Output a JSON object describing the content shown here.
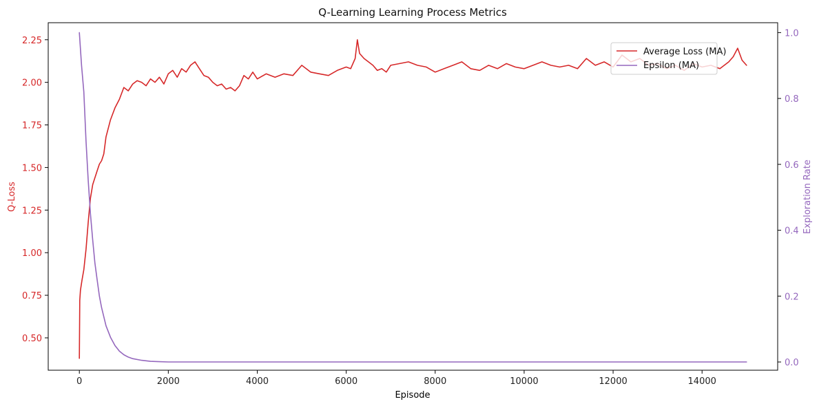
{
  "chart_data": {
    "type": "line",
    "title": "Q-Learning Learning Process Metrics",
    "xlabel": "Episode",
    "ylabel_left": "Q-Loss",
    "ylabel_right": "Exploration Rate",
    "xlim": [
      -700,
      15700
    ],
    "ylim_left": [
      0.31,
      2.35
    ],
    "ylim_right": [
      -0.025,
      1.03
    ],
    "xticks": [
      0,
      2000,
      4000,
      6000,
      8000,
      10000,
      12000,
      14000
    ],
    "xtick_labels": [
      "0",
      "2000",
      "4000",
      "6000",
      "8000",
      "10000",
      "12000",
      "14000"
    ],
    "yticks_left": [
      0.5,
      0.75,
      1.0,
      1.25,
      1.5,
      1.75,
      2.0,
      2.25
    ],
    "ytick_labels_left": [
      "0.50",
      "0.75",
      "1.00",
      "1.25",
      "1.50",
      "1.75",
      "2.00",
      "2.25"
    ],
    "yticks_right": [
      0.0,
      0.2,
      0.4,
      0.6,
      0.8,
      1.0
    ],
    "ytick_labels_right": [
      "0.0",
      "0.2",
      "0.4",
      "0.6",
      "0.8",
      "1.0"
    ],
    "grid": false,
    "legend_position": "top-right",
    "series": [
      {
        "name": "Average Loss (MA)",
        "axis": "left",
        "color": "#d62728",
        "x": [
          0,
          10,
          25,
          60,
          100,
          150,
          200,
          250,
          300,
          350,
          400,
          450,
          500,
          550,
          600,
          700,
          800,
          900,
          1000,
          1100,
          1200,
          1300,
          1400,
          1500,
          1600,
          1700,
          1800,
          1900,
          2000,
          2100,
          2200,
          2300,
          2400,
          2500,
          2600,
          2700,
          2800,
          2900,
          3000,
          3100,
          3200,
          3300,
          3400,
          3500,
          3600,
          3700,
          3800,
          3900,
          4000,
          4200,
          4400,
          4600,
          4800,
          5000,
          5200,
          5400,
          5600,
          5800,
          6000,
          6100,
          6200,
          6250,
          6300,
          6400,
          6500,
          6600,
          6700,
          6800,
          6900,
          7000,
          7200,
          7400,
          7600,
          7800,
          8000,
          8200,
          8400,
          8600,
          8800,
          9000,
          9200,
          9400,
          9600,
          9800,
          10000,
          10200,
          10400,
          10600,
          10800,
          11000,
          11200,
          11400,
          11600,
          11800,
          12000,
          12200,
          12400,
          12600,
          12800,
          13000,
          13200,
          13400,
          13600,
          13800,
          14000,
          14200,
          14400,
          14600,
          14700,
          14800,
          14900,
          15000
        ],
        "y": [
          0.38,
          0.72,
          0.78,
          0.84,
          0.9,
          1.02,
          1.18,
          1.32,
          1.4,
          1.44,
          1.48,
          1.52,
          1.54,
          1.58,
          1.68,
          1.78,
          1.85,
          1.9,
          1.97,
          1.95,
          1.99,
          2.01,
          2.0,
          1.98,
          2.02,
          2.0,
          2.03,
          1.99,
          2.05,
          2.07,
          2.03,
          2.08,
          2.06,
          2.1,
          2.12,
          2.08,
          2.04,
          2.03,
          2.0,
          1.98,
          1.99,
          1.96,
          1.97,
          1.95,
          1.98,
          2.04,
          2.02,
          2.06,
          2.02,
          2.05,
          2.03,
          2.05,
          2.04,
          2.1,
          2.06,
          2.05,
          2.04,
          2.07,
          2.09,
          2.08,
          2.14,
          2.25,
          2.17,
          2.14,
          2.12,
          2.1,
          2.07,
          2.08,
          2.06,
          2.1,
          2.11,
          2.12,
          2.1,
          2.09,
          2.06,
          2.08,
          2.1,
          2.12,
          2.08,
          2.07,
          2.1,
          2.08,
          2.11,
          2.09,
          2.08,
          2.1,
          2.12,
          2.1,
          2.09,
          2.1,
          2.08,
          2.14,
          2.1,
          2.12,
          2.09,
          2.16,
          2.12,
          2.14,
          2.1,
          2.11,
          2.08,
          2.1,
          2.07,
          2.11,
          2.09,
          2.1,
          2.08,
          2.12,
          2.15,
          2.2,
          2.13,
          2.1
        ]
      },
      {
        "name": "Epsilon (MA)",
        "axis": "right",
        "color": "#9467bd",
        "x": [
          0,
          50,
          100,
          150,
          200,
          250,
          300,
          350,
          400,
          450,
          500,
          600,
          700,
          800,
          900,
          1000,
          1100,
          1200,
          1400,
          1600,
          1800,
          2000,
          3000,
          5000,
          10000,
          15000
        ],
        "y": [
          1.0,
          0.9,
          0.82,
          0.67,
          0.55,
          0.45,
          0.37,
          0.3,
          0.25,
          0.2,
          0.165,
          0.11,
          0.075,
          0.05,
          0.033,
          0.022,
          0.015,
          0.01,
          0.005,
          0.002,
          0.001,
          0.0,
          0.0,
          0.0,
          0.0,
          0.0
        ]
      }
    ]
  }
}
